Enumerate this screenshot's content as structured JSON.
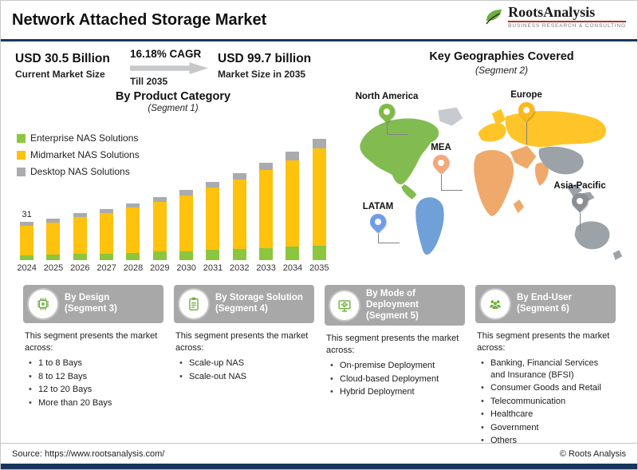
{
  "header": {
    "title": "Network Attached Storage Market",
    "logo": {
      "brand": "RootsAnalysis",
      "tagline": "BUSINESS RESEARCH & CONSULTING"
    }
  },
  "stats": {
    "current": {
      "value": "USD 30.5 Billion",
      "label": "Current Market Size"
    },
    "cagr": {
      "value": "16.18% CAGR",
      "label": "Till 2035"
    },
    "future": {
      "value": "USD 99.7 billion",
      "label": "Market Size in 2035"
    }
  },
  "chart": {
    "title": "By Product Category",
    "subtitle": "(Segment 1)"
  },
  "chart_data": {
    "type": "bar",
    "stacked": true,
    "title": "By Product Category (Segment 1)",
    "categories": [
      "2024",
      "2025",
      "2026",
      "2027",
      "2028",
      "2029",
      "2030",
      "2031",
      "2032",
      "2033",
      "2034",
      "2035"
    ],
    "series": [
      {
        "name": "Enterprise NAS Solutions",
        "color": "#8cc63e",
        "values": [
          4,
          4.5,
          5,
          5.5,
          6,
          7,
          7.5,
          8.5,
          9,
          10,
          11,
          12
        ]
      },
      {
        "name": "Midmarket NAS Solutions",
        "color": "#ffc20d",
        "values": [
          24,
          26.5,
          30,
          33.5,
          37.5,
          41,
          46,
          51,
          57,
          64,
          71,
          80
        ]
      },
      {
        "name": "Desktop NAS Solutions",
        "color": "#a9abae",
        "values": [
          3,
          3,
          3,
          3,
          3.5,
          4,
          4.5,
          4.5,
          5,
          6,
          7,
          7.7
        ]
      }
    ],
    "totals": [
      31,
      34,
      38,
      42,
      47,
      52,
      58,
      64,
      71,
      80,
      89,
      99.7
    ],
    "value_labels": {
      "2024": "31"
    },
    "xlabel": "",
    "ylabel": "",
    "ylim": [
      0,
      105
    ],
    "grid": false,
    "legend_position": "top-left"
  },
  "geo": {
    "title": "Key Geographies Covered",
    "subtitle": "(Segment 2)",
    "regions": [
      {
        "name": "North America",
        "pin_color": "#7dbb42"
      },
      {
        "name": "Europe",
        "pin_color": "#ffb81c"
      },
      {
        "name": "MEA",
        "pin_color": "#f5a878"
      },
      {
        "name": "LATAM",
        "pin_color": "#6d9eeb"
      },
      {
        "name": "Asia-Pacific",
        "pin_color": "#8b8f93"
      }
    ]
  },
  "map": {
    "north_america": "#82bc50",
    "latam": "#6fa0d8",
    "europe_russia": "#ffc428",
    "africa_mea": "#efa96b",
    "asia_pacific": "#9ba3a9",
    "neutral": "#c7cbd1"
  },
  "segments": [
    {
      "title": "By Design",
      "subtitle": "(Segment 3)",
      "icon": "chip-icon",
      "intro": "This segment presents the market across:",
      "items": [
        "1 to 8 Bays",
        "8 to 12 Bays",
        "12 to 20 Bays",
        "More than 20 Bays"
      ]
    },
    {
      "title": "By Storage Solution",
      "subtitle": "(Segment 4)",
      "icon": "clipboard-icon",
      "intro": "This segment presents the market across:",
      "items": [
        "Scale-up NAS",
        "Scale-out NAS"
      ]
    },
    {
      "title": "By Mode of Deployment",
      "subtitle": "(Segment 5)",
      "icon": "monitor-gear-icon",
      "intro": "This segment presents the market across:",
      "items": [
        "On-premise Deployment",
        "Cloud-based Deployment",
        "Hybrid Deployment"
      ]
    },
    {
      "title": "By End-User",
      "subtitle": "(Segment 6)",
      "icon": "people-icon",
      "intro": "This segment presents the market across:",
      "items": [
        "Banking, Financial Services and Insurance (BFSI)",
        "Consumer Goods and Retail",
        "Telecommunication",
        "Healthcare",
        "Government",
        "Others"
      ]
    }
  ],
  "footer": {
    "source": "Source: https://www.rootsanalysis.com/",
    "copyright": "© Roots Analysis"
  },
  "colors": {
    "accent_navy": "#17365d",
    "green": "#8cc63e",
    "yellow": "#ffc20d",
    "gray": "#a9abae",
    "card_header": "#a8a8a8"
  }
}
